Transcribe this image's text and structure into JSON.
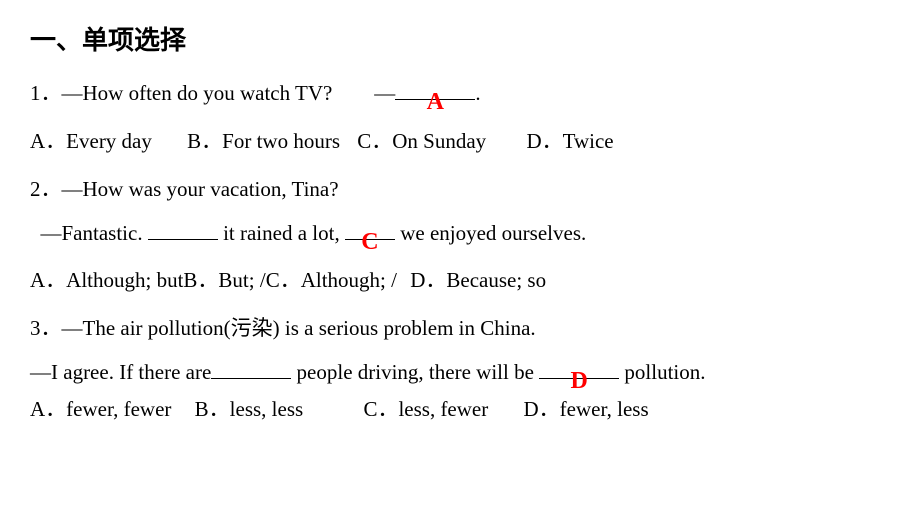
{
  "heading": "一、单项选择",
  "q1": {
    "text_before": "1．—How often do you watch TV?  —",
    "answer": "A",
    "text_after": ".",
    "options": {
      "a": "A．Every day",
      "b": "B．For two hours",
      "c": "C．On Sunday",
      "d": "D．Twice"
    }
  },
  "q2": {
    "line1": "2．—How was your vacation, Tina?",
    "line2_a": " —Fantastic. ",
    "line2_b": " it rained a lot, ",
    "answer": "C",
    "line2_c": " we enjoyed ourselves.",
    "options": {
      "a": "A．Although; but",
      "b": "B．But; /",
      "c": "C．Although; /",
      "d": "D．Because; so"
    }
  },
  "q3": {
    "line1": "3．—The air pollution(污染) is a serious problem in China.",
    "line2_a": "—I agree. If there are",
    "line2_b": " people driving, there will be ",
    "answer": "D",
    "line2_c": " pollution.",
    "options": {
      "a": "A．fewer, fewer",
      "b": "B．less, less",
      "c": "C．less, fewer",
      "d": "D．fewer, less"
    }
  },
  "style": {
    "answer_color": "#ff0000",
    "text_color": "#000000",
    "bg_color": "#ffffff",
    "heading_fontsize": 26,
    "body_fontsize": 21,
    "answer_fontsize": 24
  }
}
